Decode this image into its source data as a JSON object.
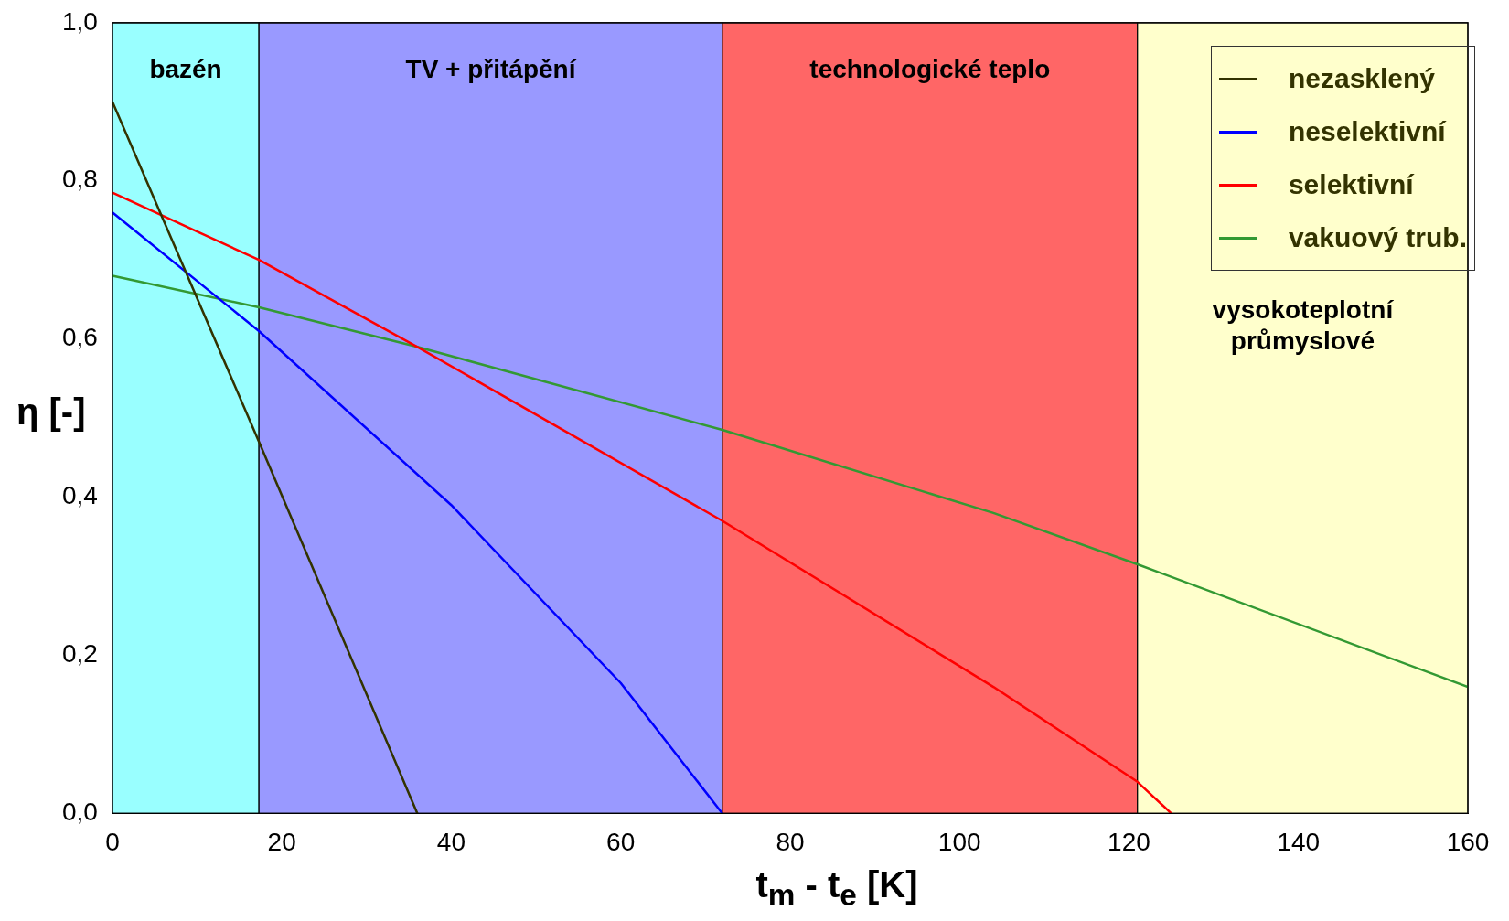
{
  "chart_data": {
    "type": "line",
    "xlabel": "t$_{m}$ - t$_{e}$ [K]",
    "ylabel": "η [-]",
    "series": [
      {
        "name": "nezasklený",
        "color": "#333300",
        "x": [
          0,
          17.3,
          36
        ],
        "values": [
          0.9,
          0.47,
          0.0
        ]
      },
      {
        "name": "neselektivní",
        "color": "#0000ff",
        "x": [
          0,
          17.3,
          40,
          60,
          72
        ],
        "values": [
          0.76,
          0.61,
          0.39,
          0.165,
          0.0
        ]
      },
      {
        "name": "selektivní",
        "color": "#ff0000",
        "x": [
          0,
          17.3,
          36,
          72,
          104,
          121,
          125
        ],
        "values": [
          0.785,
          0.7,
          0.59,
          0.37,
          0.16,
          0.04,
          0.0
        ]
      },
      {
        "name": "vakuový trub.",
        "color": "#339933",
        "x": [
          0,
          17.3,
          36,
          72,
          104,
          121,
          160
        ],
        "values": [
          0.68,
          0.64,
          0.59,
          0.485,
          0.38,
          0.315,
          0.16
        ]
      }
    ],
    "bands": [
      {
        "axis": "x",
        "from": 0,
        "to": 17.3,
        "label": "bazén",
        "color": "#99ffff"
      },
      {
        "axis": "x",
        "from": 17.3,
        "to": 72,
        "label": "TV + přitápění",
        "color": "#9999ff"
      },
      {
        "axis": "x",
        "from": 72,
        "to": 121,
        "label": "technologické teplo",
        "color": "#ff6666"
      },
      {
        "axis": "x",
        "from": 121,
        "to": 160,
        "label": "vysokoteplotní průmyslové",
        "color": "#ffffcc"
      }
    ],
    "xlim": [
      0,
      160
    ],
    "xticks": [
      0,
      20,
      40,
      60,
      80,
      100,
      120,
      140,
      160
    ],
    "ylim": [
      0,
      1
    ],
    "yticks": [
      {
        "value": 0,
        "label": "0,0"
      },
      {
        "value": 0.2,
        "label": "0,2"
      },
      {
        "value": 0.4,
        "label": "0,4"
      },
      {
        "value": 0.6,
        "label": "0,6"
      },
      {
        "value": 0.8,
        "label": "0,8"
      },
      {
        "value": 1,
        "label": "1,0"
      }
    ],
    "grid": false,
    "legend": "top right",
    "marker": "none",
    "line_style": "solid"
  }
}
